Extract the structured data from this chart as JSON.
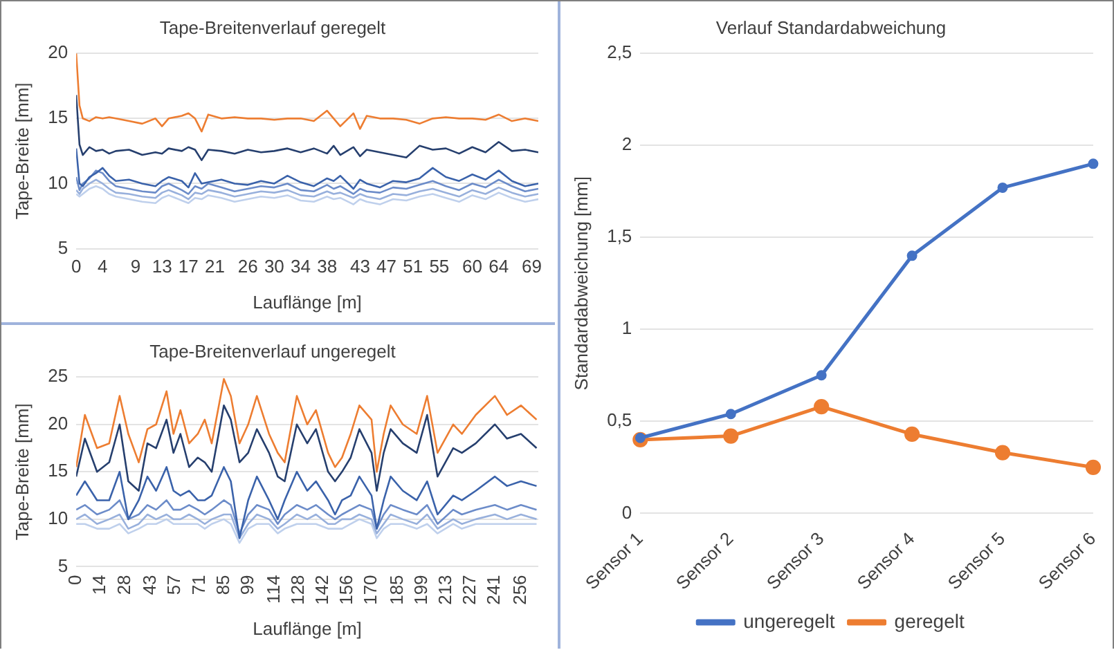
{
  "chart_data": [
    {
      "type": "line",
      "title": "Tape-Breitenverlauf geregelt",
      "xlabel": "Lauflänge [m]",
      "ylabel": "Tape-Breite [mm]",
      "grid": "y",
      "legend": false,
      "marker": "none",
      "line_style": "solid",
      "x": [
        0,
        0.5,
        1,
        2,
        3,
        4,
        5,
        6,
        8,
        10,
        12,
        13,
        14,
        16,
        17,
        18,
        19,
        20,
        22,
        24,
        26,
        28,
        30,
        32,
        34,
        36,
        38,
        39,
        40,
        42,
        43,
        44,
        46,
        48,
        50,
        52,
        54,
        56,
        58,
        60,
        62,
        64,
        66,
        68,
        70
      ],
      "xlim": [
        0,
        70
      ],
      "xticks": [
        0,
        4,
        9,
        13,
        17,
        21,
        26,
        30,
        34,
        38,
        43,
        47,
        51,
        55,
        60,
        64,
        69
      ],
      "ylim": [
        5,
        20
      ],
      "yticks": [
        5,
        10,
        15,
        20
      ],
      "series": [
        {
          "color": "#ed7d31",
          "values": [
            20,
            16,
            15,
            14.8,
            15.1,
            15,
            15.1,
            15,
            14.8,
            14.6,
            15,
            14.4,
            15,
            15.2,
            15.4,
            15,
            14,
            15.3,
            15,
            15.1,
            15,
            15,
            14.9,
            15,
            15,
            14.8,
            15.6,
            15,
            14.4,
            15.4,
            14.2,
            15.2,
            15,
            15,
            14.9,
            14.6,
            15,
            15.1,
            15,
            15,
            14.9,
            15.3,
            14.8,
            15,
            14.8
          ]
        },
        {
          "color": "#263f6e",
          "values": [
            16.8,
            13,
            12.2,
            12.8,
            12.5,
            12.6,
            12.3,
            12.5,
            12.6,
            12.2,
            12.4,
            12.3,
            12.7,
            12.5,
            12.8,
            12.6,
            11.8,
            12.6,
            12.5,
            12.3,
            12.6,
            12.4,
            12.5,
            12.7,
            12.4,
            12.7,
            12.3,
            12.9,
            12.2,
            12.8,
            12.1,
            12.6,
            12.4,
            12.2,
            12,
            12.9,
            12.6,
            12.7,
            12.3,
            12.8,
            12.4,
            13.2,
            12.5,
            12.6,
            12.4
          ]
        },
        {
          "color": "#3a62aa",
          "values": [
            12.7,
            10,
            9.8,
            10.5,
            10.8,
            11.2,
            10.6,
            10.2,
            10.3,
            10,
            9.8,
            10.2,
            10.5,
            10.2,
            9.7,
            10.8,
            10,
            10.1,
            10.3,
            10,
            9.9,
            10.2,
            10,
            10.6,
            10.1,
            9.8,
            10.4,
            10.2,
            10.6,
            9.6,
            10.3,
            10,
            9.7,
            10.2,
            10.1,
            10.4,
            11.2,
            10.5,
            10.2,
            10.7,
            10.3,
            11,
            10.2,
            9.8,
            10
          ]
        },
        {
          "color": "#6c8cc9",
          "values": [
            10.5,
            9.5,
            10,
            10.4,
            11,
            10.8,
            10.2,
            9.8,
            9.6,
            9.4,
            9.3,
            9.8,
            10,
            9.5,
            9.2,
            9.8,
            9.6,
            10,
            9.7,
            9.4,
            9.6,
            9.8,
            9.7,
            10,
            9.5,
            9.4,
            9.9,
            9.6,
            9.8,
            9.2,
            9.6,
            9.4,
            9.3,
            9.7,
            9.6,
            9.9,
            10.2,
            9.8,
            9.5,
            10,
            9.7,
            10.3,
            9.8,
            9.4,
            9.6
          ]
        },
        {
          "color": "#98b0dc",
          "values": [
            9.5,
            9.2,
            9.6,
            10,
            10.3,
            10,
            9.6,
            9.3,
            9.2,
            9,
            8.9,
            9.3,
            9.5,
            9.1,
            8.8,
            9.3,
            9.2,
            9.5,
            9.3,
            9,
            9.2,
            9.4,
            9.3,
            9.5,
            9.1,
            9,
            9.4,
            9.2,
            9.3,
            8.9,
            9.2,
            9,
            8.8,
            9.2,
            9.1,
            9.4,
            9.6,
            9.3,
            9,
            9.5,
            9.2,
            9.7,
            9.3,
            9,
            9.2
          ]
        },
        {
          "color": "#bfd0ec",
          "values": [
            9.2,
            9,
            9.2,
            9.6,
            9.8,
            9.6,
            9.2,
            9,
            8.8,
            8.6,
            8.5,
            8.9,
            9.1,
            8.7,
            8.5,
            8.9,
            8.8,
            9.1,
            8.9,
            8.6,
            8.8,
            9,
            8.9,
            9.1,
            8.7,
            8.6,
            9,
            8.8,
            8.9,
            8.4,
            8.8,
            8.6,
            8.4,
            8.8,
            8.7,
            9,
            9.2,
            8.9,
            8.6,
            9.1,
            8.8,
            9.3,
            8.9,
            8.6,
            8.8
          ]
        }
      ]
    },
    {
      "type": "line",
      "title": "Tape-Breitenverlauf ungeregelt",
      "xlabel": "Lauflänge [m]",
      "ylabel": "Tape-Breite [mm]",
      "grid": "y",
      "legend": false,
      "marker": "none",
      "line_style": "solid",
      "x": [
        0,
        5,
        12,
        19,
        25,
        30,
        36,
        41,
        46,
        52,
        56,
        60,
        65,
        70,
        74,
        78,
        85,
        89,
        94,
        99,
        104,
        111,
        116,
        120,
        127,
        133,
        138,
        145,
        149,
        153,
        158,
        163,
        170,
        173,
        177,
        181,
        188,
        196,
        202,
        208,
        217,
        222,
        230,
        241,
        248,
        256,
        265
      ],
      "xlim": [
        0,
        266
      ],
      "xticks": [
        0,
        14,
        28,
        43,
        57,
        71,
        85,
        99,
        114,
        128,
        142,
        156,
        170,
        185,
        199,
        213,
        227,
        241,
        256
      ],
      "ylim": [
        5,
        25
      ],
      "yticks": [
        5,
        10,
        15,
        20,
        25
      ],
      "series": [
        {
          "color": "#ed7d31",
          "values": [
            15.5,
            21,
            17.5,
            18,
            23,
            19,
            16,
            19.5,
            20,
            23.5,
            19,
            21.5,
            18,
            19,
            20.5,
            18,
            24.8,
            23,
            18,
            20,
            23,
            19,
            17,
            16,
            23,
            20,
            21.5,
            17,
            15.5,
            16.5,
            19,
            22,
            20.5,
            15,
            19,
            22,
            20,
            19,
            23,
            17,
            20,
            19,
            21,
            23,
            21,
            22,
            20.5
          ]
        },
        {
          "color": "#263f6e",
          "values": [
            14.5,
            18.5,
            15,
            16,
            20,
            14,
            13,
            18,
            17.5,
            20.5,
            17,
            19,
            15.5,
            16.5,
            16,
            15,
            22,
            20.5,
            16,
            17,
            19.5,
            17,
            14.5,
            14,
            20,
            18,
            19.5,
            15,
            14,
            15,
            16.5,
            19.5,
            17,
            13,
            17,
            19.5,
            18,
            17,
            21,
            14.5,
            17.5,
            17,
            18,
            20,
            18.5,
            19,
            17.5
          ]
        },
        {
          "color": "#3a62aa",
          "values": [
            12.5,
            14,
            12,
            12,
            15,
            10,
            12,
            14.5,
            13,
            15.5,
            13,
            12.5,
            13,
            12,
            12,
            12.5,
            15.5,
            14,
            8,
            12,
            14.5,
            12,
            10,
            12,
            15,
            13,
            14,
            12,
            10.5,
            12,
            12.5,
            14.5,
            12.5,
            9,
            12,
            14.5,
            13,
            12,
            14,
            10.5,
            12.5,
            12,
            13,
            14.5,
            13.5,
            14,
            13.5
          ]
        },
        {
          "color": "#6c8cc9",
          "values": [
            11,
            11.5,
            10.5,
            11,
            12,
            10,
            10.5,
            11.5,
            11,
            12,
            11,
            11,
            11.5,
            11,
            10.5,
            11,
            12,
            11.5,
            8.5,
            10.5,
            11.5,
            11,
            9.5,
            10.5,
            11.5,
            11,
            11.5,
            10.5,
            10,
            10.5,
            11,
            11.5,
            11,
            9,
            10.5,
            11.5,
            11,
            10.5,
            11.5,
            9.5,
            11,
            10.5,
            11,
            11.5,
            11,
            11.5,
            11
          ]
        },
        {
          "color": "#98b0dc",
          "values": [
            10,
            10.5,
            9.5,
            10,
            10.5,
            9,
            9.5,
            10.5,
            10,
            10.5,
            10,
            10,
            10.5,
            10,
            9.5,
            10,
            10.5,
            10.5,
            8,
            9.5,
            10.5,
            10,
            9,
            9.5,
            10.5,
            10,
            10.5,
            9.5,
            9.5,
            10,
            10,
            10.5,
            10,
            8.5,
            9.5,
            10.5,
            10,
            9.5,
            10.5,
            9,
            10,
            9.5,
            10,
            10.5,
            10,
            10.5,
            10
          ]
        },
        {
          "color": "#bfd0ec",
          "values": [
            9.5,
            9.5,
            9,
            9,
            9.5,
            8.5,
            9,
            9.5,
            9.5,
            10,
            9.5,
            9.5,
            9.5,
            9.5,
            9,
            9.5,
            10,
            9.5,
            7.5,
            9,
            9.5,
            9.5,
            8.5,
            9,
            9.5,
            9.5,
            9.5,
            9,
            9,
            9,
            9.5,
            10,
            9.5,
            8,
            9,
            9.5,
            9.5,
            9,
            9.5,
            8.5,
            9.5,
            9,
            9.5,
            9.5,
            9.5,
            9.5,
            9.5
          ]
        }
      ]
    },
    {
      "type": "line",
      "title": "Verlauf Standardabweichung",
      "ylabel": "Standardabweichung [mm]",
      "grid": "y",
      "legend": "bottom",
      "marker": "circle",
      "line_style": "solid",
      "categories": [
        "Sensor 1",
        "Sensor 2",
        "Sensor 3",
        "Sensor 4",
        "Sensor 5",
        "Sensor 6"
      ],
      "ylim": [
        0,
        2.5
      ],
      "yticks": [
        0,
        {
          "value": 0.5,
          "label": "0,5"
        },
        1,
        {
          "value": 1.5,
          "label": "1,5"
        },
        2,
        {
          "value": 2.5,
          "label": "2,5"
        }
      ],
      "series": [
        {
          "name": "ungeregelt",
          "color": "#4472c4",
          "values": [
            0.41,
            0.54,
            0.75,
            1.4,
            1.77,
            1.9
          ]
        },
        {
          "name": "geregelt",
          "color": "#ed7d31",
          "values": [
            0.4,
            0.42,
            0.58,
            0.43,
            0.33,
            0.25
          ]
        }
      ]
    }
  ]
}
